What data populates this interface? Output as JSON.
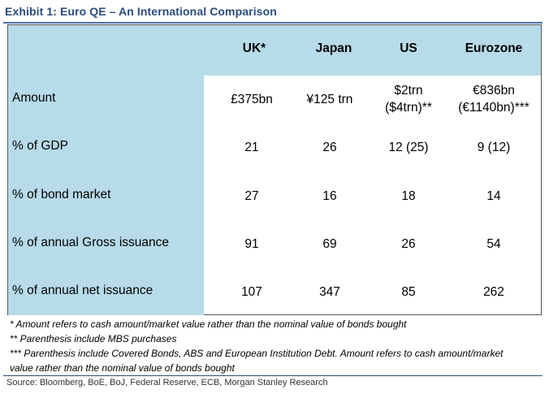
{
  "title": "Exhibit 1: Euro QE – An International Comparison",
  "columns": [
    "UK*",
    "Japan",
    "US",
    "Eurozone"
  ],
  "rows": [
    {
      "label": "Amount",
      "cells": [
        [
          "£375bn"
        ],
        [
          "¥125 trn"
        ],
        [
          "$2trn",
          "($4trn)**"
        ],
        [
          "€836bn",
          "(€1140bn)***"
        ]
      ]
    },
    {
      "label": "% of GDP",
      "cells": [
        [
          "21"
        ],
        [
          "26"
        ],
        [
          "12 (25)"
        ],
        [
          "9 (12)"
        ]
      ]
    },
    {
      "label": "% of bond market",
      "cells": [
        [
          "27"
        ],
        [
          "16"
        ],
        [
          "18"
        ],
        [
          "14"
        ]
      ]
    },
    {
      "label": "% of annual Gross issuance",
      "cells": [
        [
          "91"
        ],
        [
          "69"
        ],
        [
          "26"
        ],
        [
          "54"
        ]
      ]
    },
    {
      "label": "% of annual net issuance",
      "cells": [
        [
          "107"
        ],
        [
          "347"
        ],
        [
          "85"
        ],
        [
          "262"
        ]
      ]
    }
  ],
  "notes": [
    "* Amount refers to cash amount/market value rather than the nominal value of bonds bought",
    "** Parenthesis include MBS purchases",
    "*** Parenthesis include Covered Bonds, ABS and European Institution Debt. Amount refers to cash amount/market",
    "value rather than the nominal value of bonds bought"
  ],
  "source": "Source: Bloomberg, BoE, BoJ, Federal Reserve, ECB, Morgan Stanley Research",
  "colors": {
    "band": "#b7dbe8",
    "title": "#2b4c7e"
  }
}
